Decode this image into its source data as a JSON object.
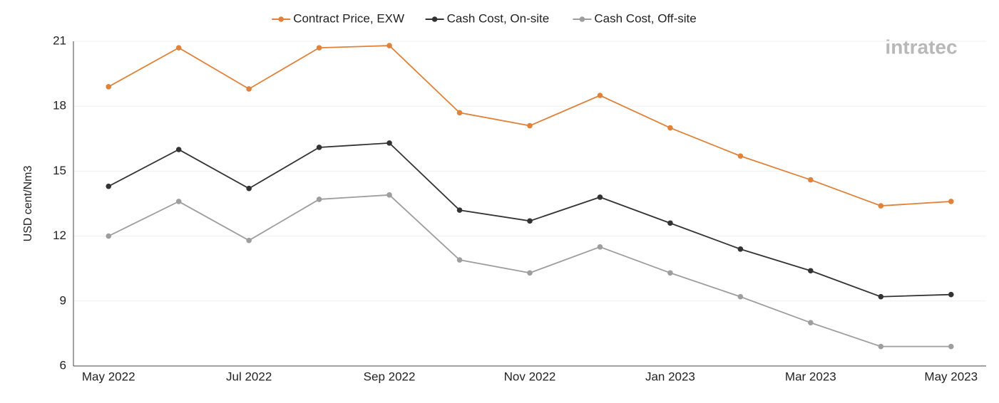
{
  "chart_data": {
    "type": "line",
    "y_label": "USD cent/Nm3",
    "watermark": "intratec",
    "categories": [
      "May 2022",
      null,
      "Jul 2022",
      null,
      "Sep 2022",
      null,
      "Nov 2022",
      null,
      "Jan 2023",
      null,
      "Mar 2023",
      null,
      "May 2023"
    ],
    "series": [
      {
        "name": "Contract Price, EXW",
        "color": "#e0823a",
        "values": [
          18.9,
          20.7,
          18.8,
          20.7,
          20.8,
          17.7,
          17.1,
          18.5,
          17.0,
          15.7,
          14.6,
          13.4,
          13.6
        ]
      },
      {
        "name": "Cash Cost, On-site",
        "color": "#333333",
        "values": [
          14.3,
          16.0,
          14.2,
          16.1,
          16.3,
          13.2,
          12.7,
          13.8,
          12.6,
          11.4,
          10.4,
          9.2,
          9.3
        ]
      },
      {
        "name": "Cash Cost, Off-site",
        "color": "#9e9e9e",
        "values": [
          12.0,
          13.6,
          11.8,
          13.7,
          13.9,
          10.9,
          10.3,
          11.5,
          10.3,
          9.2,
          8.0,
          6.9,
          6.9
        ]
      }
    ],
    "ylim": [
      6,
      21
    ],
    "yticks": [
      6,
      9,
      12,
      15,
      18,
      21
    ],
    "grid": true
  }
}
